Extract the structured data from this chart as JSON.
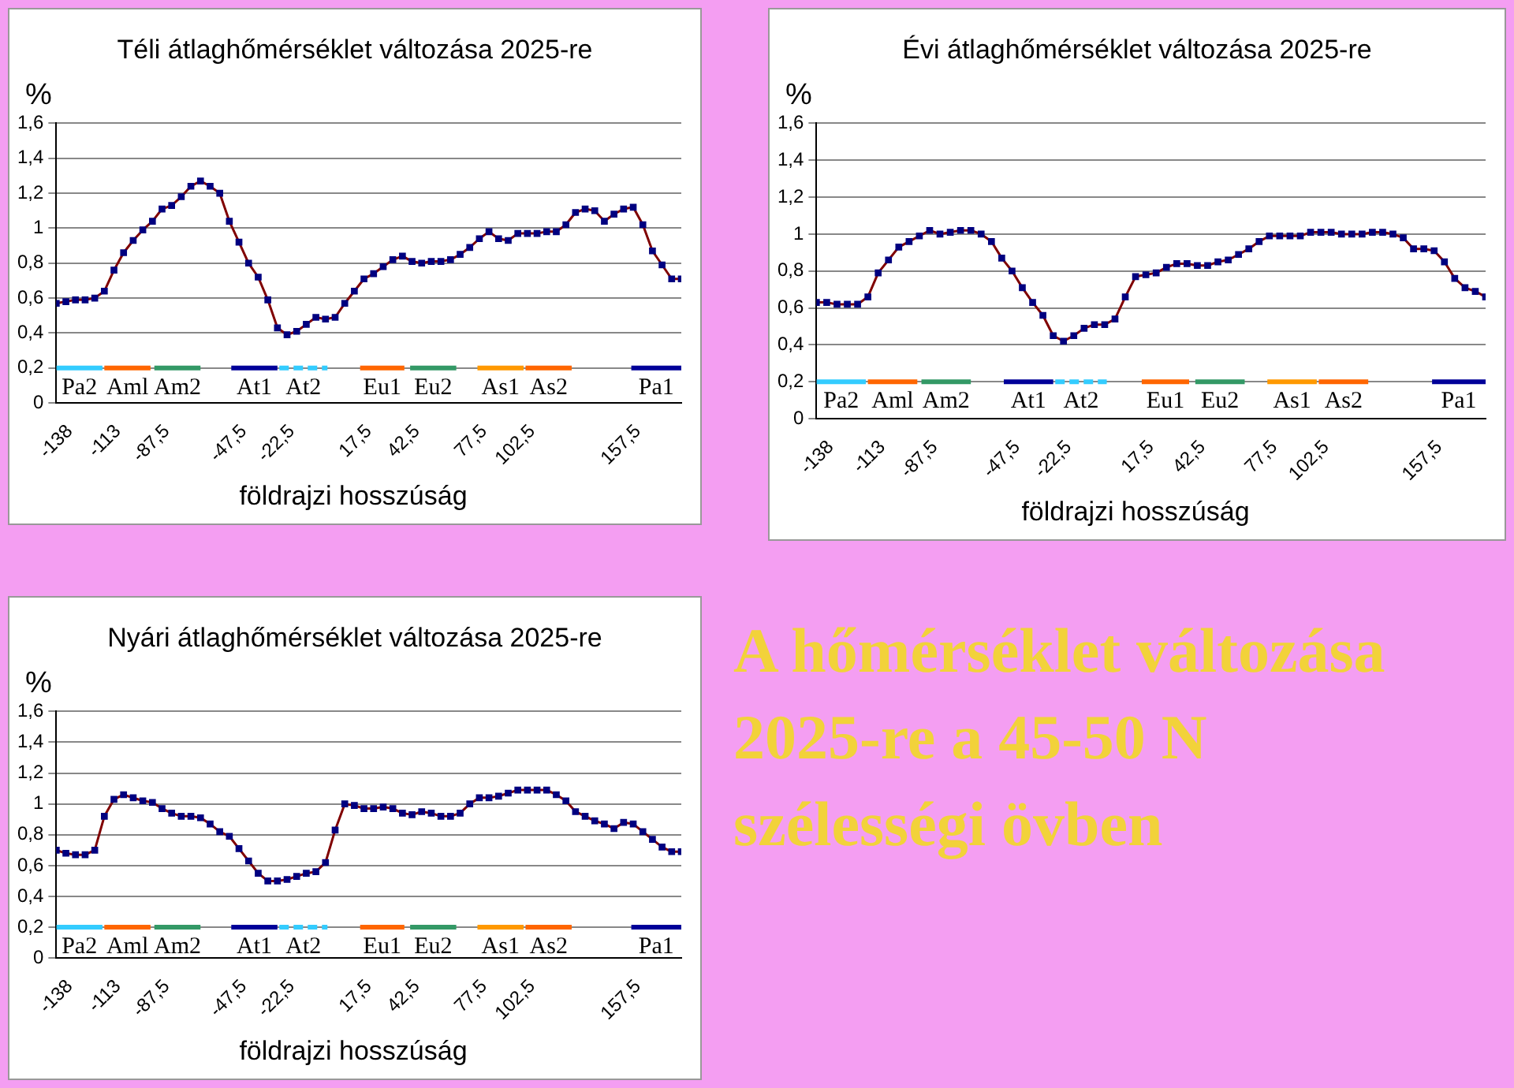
{
  "chart_data": [
    {
      "type": "line",
      "title": "Téli átlaghőmérséklet változása 2025-re",
      "ylabel": "%",
      "xlabel": "földrajzi hosszúság",
      "xlim": [
        -145,
        180
      ],
      "xticks": [
        {
          "value": -138,
          "label": "-138"
        },
        {
          "value": -113,
          "label": "-113"
        },
        {
          "value": -87.5,
          "label": "-87,5"
        },
        {
          "value": -47.5,
          "label": "-47,5"
        },
        {
          "value": -22.5,
          "label": "-22,5"
        },
        {
          "value": 17.5,
          "label": "17,5"
        },
        {
          "value": 42.5,
          "label": "42,5"
        },
        {
          "value": 77.5,
          "label": "77,5"
        },
        {
          "value": 102.5,
          "label": "102,5"
        },
        {
          "value": 157.5,
          "label": "157,5"
        }
      ],
      "ylim": [
        0,
        1.6
      ],
      "yticks": [
        {
          "value": 0,
          "label": "0"
        },
        {
          "value": 0.2,
          "label": "0,2"
        },
        {
          "value": 0.4,
          "label": "0,4"
        },
        {
          "value": 0.6,
          "label": "0,6"
        },
        {
          "value": 0.8,
          "label": "0,8"
        },
        {
          "value": 1,
          "label": "1"
        },
        {
          "value": 1.2,
          "label": "1,2"
        },
        {
          "value": 1.4,
          "label": "1,4"
        },
        {
          "value": 1.6,
          "label": "1,6"
        }
      ],
      "grid": "y",
      "legend": false,
      "marker": "square",
      "series": [
        {
          "color": "#800000",
          "x": [
            -145,
            -140,
            -135,
            -130,
            -125,
            -120,
            -115,
            -110,
            -105,
            -100,
            -95,
            -90,
            -85,
            -80,
            -75,
            -70,
            -65,
            -60,
            -55,
            -50,
            -45,
            -40,
            -35,
            -30,
            -25,
            -20,
            -15,
            -10,
            -5,
            0,
            5,
            10,
            15,
            20,
            25,
            30,
            35,
            40,
            45,
            50,
            55,
            60,
            65,
            70,
            75,
            80,
            85,
            90,
            95,
            100,
            105,
            110,
            115,
            120,
            125,
            130,
            135,
            140,
            145,
            150,
            155,
            160,
            165,
            170,
            175,
            180
          ],
          "values": [
            0.57,
            0.58,
            0.59,
            0.59,
            0.6,
            0.64,
            0.76,
            0.86,
            0.93,
            0.99,
            1.04,
            1.11,
            1.13,
            1.18,
            1.24,
            1.27,
            1.24,
            1.2,
            1.04,
            0.92,
            0.8,
            0.72,
            0.59,
            0.43,
            0.39,
            0.41,
            0.45,
            0.49,
            0.48,
            0.49,
            0.57,
            0.64,
            0.71,
            0.74,
            0.78,
            0.82,
            0.84,
            0.81,
            0.8,
            0.81,
            0.81,
            0.82,
            0.85,
            0.89,
            0.94,
            0.98,
            0.94,
            0.93,
            0.97,
            0.97,
            0.97,
            0.98,
            0.98,
            1.02,
            1.09,
            1.11,
            1.1,
            1.04,
            1.08,
            1.11,
            1.12,
            1.02,
            0.87,
            0.79,
            0.71,
            0.71
          ]
        },
        {
          "name": "Pa2",
          "color": "#33ccff",
          "marker": "none",
          "x": [
            -145,
            -121
          ],
          "values": [
            0.2,
            0.2
          ]
        },
        {
          "name": "Aml",
          "color": "#ff6600",
          "marker": "none",
          "x": [
            -120,
            -96
          ],
          "values": [
            0.2,
            0.2
          ]
        },
        {
          "name": "Am2",
          "color": "#339966",
          "marker": "none",
          "x": [
            -94,
            -70
          ],
          "values": [
            0.2,
            0.2
          ]
        },
        {
          "name": "At1",
          "color": "#000099",
          "marker": "none",
          "x": [
            -54,
            -30
          ],
          "values": [
            0.2,
            0.2
          ]
        },
        {
          "name": "At2",
          "color": "#33ccff",
          "marker": "none",
          "line_style": "dashed",
          "x": [
            -29,
            -4
          ],
          "values": [
            0.2,
            0.2
          ]
        },
        {
          "name": "Eu1",
          "color": "#ff6600",
          "marker": "none",
          "x": [
            13,
            36
          ],
          "values": [
            0.2,
            0.2
          ]
        },
        {
          "name": "Eu2",
          "color": "#339966",
          "marker": "none",
          "x": [
            39,
            63
          ],
          "values": [
            0.2,
            0.2
          ]
        },
        {
          "name": "As1",
          "color": "#ff9900",
          "marker": "none",
          "x": [
            74,
            98
          ],
          "values": [
            0.2,
            0.2
          ]
        },
        {
          "name": "As2",
          "color": "#ff6600",
          "marker": "none",
          "x": [
            99,
            123
          ],
          "values": [
            0.2,
            0.2
          ]
        },
        {
          "name": "Pa1",
          "color": "#000099",
          "marker": "none",
          "x": [
            154,
            180
          ],
          "values": [
            0.2,
            0.2
          ]
        }
      ]
    },
    {
      "type": "line",
      "title": "Évi átlaghőmérséklet változása 2025-re",
      "ylabel": "%",
      "xlabel": "földrajzi hosszúság",
      "xlim": [
        -145,
        180
      ],
      "xticks": [
        {
          "value": -138,
          "label": "-138"
        },
        {
          "value": -113,
          "label": "-113"
        },
        {
          "value": -87.5,
          "label": "-87,5"
        },
        {
          "value": -47.5,
          "label": "-47,5"
        },
        {
          "value": -22.5,
          "label": "-22,5"
        },
        {
          "value": 17.5,
          "label": "17,5"
        },
        {
          "value": 42.5,
          "label": "42,5"
        },
        {
          "value": 77.5,
          "label": "77,5"
        },
        {
          "value": 102.5,
          "label": "102,5"
        },
        {
          "value": 157.5,
          "label": "157,5"
        }
      ],
      "ylim": [
        0,
        1.6
      ],
      "yticks": [
        {
          "value": 0,
          "label": "0"
        },
        {
          "value": 0.2,
          "label": "0,2"
        },
        {
          "value": 0.4,
          "label": "0,4"
        },
        {
          "value": 0.6,
          "label": "0,6"
        },
        {
          "value": 0.8,
          "label": "0,8"
        },
        {
          "value": 1,
          "label": "1"
        },
        {
          "value": 1.2,
          "label": "1,2"
        },
        {
          "value": 1.4,
          "label": "1,4"
        },
        {
          "value": 1.6,
          "label": "1,6"
        }
      ],
      "grid": "y",
      "legend": false,
      "marker": "square",
      "series": [
        {
          "color": "#800000",
          "x": [
            -145,
            -140,
            -135,
            -130,
            -125,
            -120,
            -115,
            -110,
            -105,
            -100,
            -95,
            -90,
            -85,
            -80,
            -75,
            -70,
            -65,
            -60,
            -55,
            -50,
            -45,
            -40,
            -35,
            -30,
            -25,
            -20,
            -15,
            -10,
            -5,
            0,
            5,
            10,
            15,
            20,
            25,
            30,
            35,
            40,
            45,
            50,
            55,
            60,
            65,
            70,
            75,
            80,
            85,
            90,
            95,
            100,
            105,
            110,
            115,
            120,
            125,
            130,
            135,
            140,
            145,
            150,
            155,
            160,
            165,
            170,
            175,
            180
          ],
          "values": [
            0.63,
            0.63,
            0.62,
            0.62,
            0.62,
            0.66,
            0.79,
            0.86,
            0.93,
            0.96,
            0.99,
            1.02,
            1.0,
            1.01,
            1.02,
            1.02,
            1.0,
            0.96,
            0.87,
            0.8,
            0.71,
            0.63,
            0.56,
            0.45,
            0.42,
            0.45,
            0.49,
            0.51,
            0.51,
            0.54,
            0.66,
            0.77,
            0.78,
            0.79,
            0.82,
            0.84,
            0.84,
            0.83,
            0.83,
            0.85,
            0.86,
            0.89,
            0.92,
            0.96,
            0.99,
            0.99,
            0.99,
            0.99,
            1.01,
            1.01,
            1.01,
            1.0,
            1.0,
            1.0,
            1.01,
            1.01,
            1.0,
            0.98,
            0.92,
            0.92,
            0.91,
            0.85,
            0.76,
            0.71,
            0.69,
            0.66
          ]
        },
        {
          "name": "Pa2",
          "color": "#33ccff",
          "marker": "none",
          "x": [
            -145,
            -121
          ],
          "values": [
            0.2,
            0.2
          ]
        },
        {
          "name": "Aml",
          "color": "#ff6600",
          "marker": "none",
          "x": [
            -120,
            -96
          ],
          "values": [
            0.2,
            0.2
          ]
        },
        {
          "name": "Am2",
          "color": "#339966",
          "marker": "none",
          "x": [
            -94,
            -70
          ],
          "values": [
            0.2,
            0.2
          ]
        },
        {
          "name": "At1",
          "color": "#000099",
          "marker": "none",
          "x": [
            -54,
            -30
          ],
          "values": [
            0.2,
            0.2
          ]
        },
        {
          "name": "At2",
          "color": "#33ccff",
          "marker": "none",
          "line_style": "dashed",
          "x": [
            -29,
            -4
          ],
          "values": [
            0.2,
            0.2
          ]
        },
        {
          "name": "Eu1",
          "color": "#ff6600",
          "marker": "none",
          "x": [
            13,
            36
          ],
          "values": [
            0.2,
            0.2
          ]
        },
        {
          "name": "Eu2",
          "color": "#339966",
          "marker": "none",
          "x": [
            39,
            63
          ],
          "values": [
            0.2,
            0.2
          ]
        },
        {
          "name": "As1",
          "color": "#ff9900",
          "marker": "none",
          "x": [
            74,
            98
          ],
          "values": [
            0.2,
            0.2
          ]
        },
        {
          "name": "As2",
          "color": "#ff6600",
          "marker": "none",
          "x": [
            99,
            123
          ],
          "values": [
            0.2,
            0.2
          ]
        },
        {
          "name": "Pa1",
          "color": "#000099",
          "marker": "none",
          "x": [
            154,
            180
          ],
          "values": [
            0.2,
            0.2
          ]
        }
      ]
    },
    {
      "type": "line",
      "title": "Nyári átlaghőmérséklet változása 2025-re",
      "ylabel": "%",
      "xlabel": "földrajzi hosszúság",
      "xlim": [
        -145,
        180
      ],
      "xticks": [
        {
          "value": -138,
          "label": "-138"
        },
        {
          "value": -113,
          "label": "-113"
        },
        {
          "value": -87.5,
          "label": "-87,5"
        },
        {
          "value": -47.5,
          "label": "-47,5"
        },
        {
          "value": -22.5,
          "label": "-22,5"
        },
        {
          "value": 17.5,
          "label": "17,5"
        },
        {
          "value": 42.5,
          "label": "42,5"
        },
        {
          "value": 77.5,
          "label": "77,5"
        },
        {
          "value": 102.5,
          "label": "102,5"
        },
        {
          "value": 157.5,
          "label": "157,5"
        }
      ],
      "ylim": [
        0,
        1.6
      ],
      "yticks": [
        {
          "value": 0,
          "label": "0"
        },
        {
          "value": 0.2,
          "label": "0,2"
        },
        {
          "value": 0.4,
          "label": "0,4"
        },
        {
          "value": 0.6,
          "label": "0,6"
        },
        {
          "value": 0.8,
          "label": "0,8"
        },
        {
          "value": 1,
          "label": "1"
        },
        {
          "value": 1.2,
          "label": "1,2"
        },
        {
          "value": 1.4,
          "label": "1,4"
        },
        {
          "value": 1.6,
          "label": "1,6"
        }
      ],
      "grid": "y",
      "legend": false,
      "marker": "square",
      "series": [
        {
          "color": "#800000",
          "x": [
            -145,
            -140,
            -135,
            -130,
            -125,
            -120,
            -115,
            -110,
            -105,
            -100,
            -95,
            -90,
            -85,
            -80,
            -75,
            -70,
            -65,
            -60,
            -55,
            -50,
            -45,
            -40,
            -35,
            -30,
            -25,
            -20,
            -15,
            -10,
            -5,
            0,
            5,
            10,
            15,
            20,
            25,
            30,
            35,
            40,
            45,
            50,
            55,
            60,
            65,
            70,
            75,
            80,
            85,
            90,
            95,
            100,
            105,
            110,
            115,
            120,
            125,
            130,
            135,
            140,
            145,
            150,
            155,
            160,
            165,
            170,
            175,
            180
          ],
          "values": [
            0.7,
            0.68,
            0.67,
            0.67,
            0.7,
            0.92,
            1.03,
            1.06,
            1.04,
            1.02,
            1.01,
            0.97,
            0.94,
            0.92,
            0.92,
            0.91,
            0.87,
            0.82,
            0.79,
            0.71,
            0.63,
            0.55,
            0.5,
            0.5,
            0.51,
            0.53,
            0.55,
            0.56,
            0.62,
            0.83,
            1.0,
            0.99,
            0.97,
            0.97,
            0.98,
            0.97,
            0.94,
            0.93,
            0.95,
            0.94,
            0.92,
            0.92,
            0.94,
            1.0,
            1.04,
            1.04,
            1.05,
            1.07,
            1.09,
            1.09,
            1.09,
            1.09,
            1.06,
            1.02,
            0.95,
            0.92,
            0.89,
            0.87,
            0.84,
            0.88,
            0.87,
            0.82,
            0.77,
            0.72,
            0.69,
            0.69
          ]
        },
        {
          "name": "Pa2",
          "color": "#33ccff",
          "marker": "none",
          "x": [
            -145,
            -121
          ],
          "values": [
            0.2,
            0.2
          ]
        },
        {
          "name": "Aml",
          "color": "#ff6600",
          "marker": "none",
          "x": [
            -120,
            -96
          ],
          "values": [
            0.2,
            0.2
          ]
        },
        {
          "name": "Am2",
          "color": "#339966",
          "marker": "none",
          "x": [
            -94,
            -70
          ],
          "values": [
            0.2,
            0.2
          ]
        },
        {
          "name": "At1",
          "color": "#000099",
          "marker": "none",
          "x": [
            -54,
            -30
          ],
          "values": [
            0.2,
            0.2
          ]
        },
        {
          "name": "At2",
          "color": "#33ccff",
          "marker": "none",
          "line_style": "dashed",
          "x": [
            -29,
            -4
          ],
          "values": [
            0.2,
            0.2
          ]
        },
        {
          "name": "Eu1",
          "color": "#ff6600",
          "marker": "none",
          "x": [
            13,
            36
          ],
          "values": [
            0.2,
            0.2
          ]
        },
        {
          "name": "Eu2",
          "color": "#339966",
          "marker": "none",
          "x": [
            39,
            63
          ],
          "values": [
            0.2,
            0.2
          ]
        },
        {
          "name": "As1",
          "color": "#ff9900",
          "marker": "none",
          "x": [
            74,
            98
          ],
          "values": [
            0.2,
            0.2
          ]
        },
        {
          "name": "As2",
          "color": "#ff6600",
          "marker": "none",
          "x": [
            99,
            123
          ],
          "values": [
            0.2,
            0.2
          ]
        },
        {
          "name": "Pa1",
          "color": "#000099",
          "marker": "none",
          "x": [
            154,
            180
          ],
          "values": [
            0.2,
            0.2
          ]
        }
      ]
    },
    {
      "type": "other",
      "title": "A hőmérséklet változása 2025-re a 45-50 N szélességi övben"
    }
  ]
}
